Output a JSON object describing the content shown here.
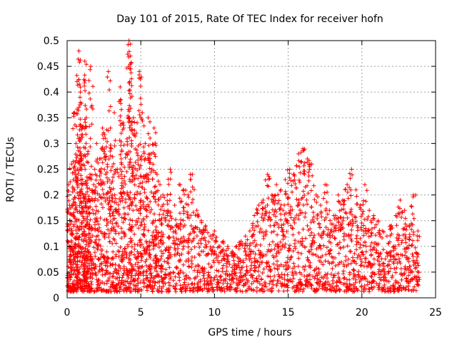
{
  "chart_data": {
    "type": "scatter",
    "title": "Day 101 of 2015, Rate Of TEC Index for receiver hofn",
    "xlabel": "GPS time / hours",
    "ylabel": "ROTI / TECUs",
    "xlim": [
      0,
      25
    ],
    "ylim": [
      0,
      0.5
    ],
    "x_ticks": [
      "0",
      "5",
      "10",
      "15",
      "20",
      "25"
    ],
    "y_ticks": [
      "0",
      "0.05",
      "0.1",
      "0.15",
      "0.2",
      "0.25",
      "0.3",
      "0.35",
      "0.4",
      "0.45",
      "0.5"
    ],
    "grid": true,
    "marker": "+",
    "color": "#ff0000",
    "series": [
      {
        "x": [
          0.1,
          0.2,
          0.3,
          0.4,
          0.5,
          0.6,
          0.7,
          0.8,
          0.9,
          1.0,
          1.1,
          1.2,
          1.3,
          1.4,
          1.5,
          1.6,
          1.8,
          2.0,
          2.2,
          2.4,
          2.6,
          2.8,
          3.0,
          3.2,
          3.4,
          3.6,
          3.8,
          4.0,
          4.2,
          4.3,
          4.5,
          4.7,
          4.9,
          5.1,
          5.3,
          5.5,
          5.7,
          5.9,
          6.1,
          6.3,
          6.5,
          6.8,
          7.0,
          7.3,
          7.6,
          7.9,
          8.2,
          8.5,
          8.8,
          9.1,
          9.4,
          9.7,
          10.0,
          10.3,
          10.6,
          10.9,
          11.2,
          11.5,
          11.8,
          12.1,
          12.4,
          12.7,
          13.0,
          13.3,
          13.6,
          13.9,
          14.2,
          14.5,
          14.8,
          15.1,
          15.4,
          15.7,
          16.0,
          16.3,
          16.6,
          16.9,
          17.2,
          17.5,
          17.8,
          18.1,
          18.4,
          18.7,
          19.0,
          19.3,
          19.6,
          19.9,
          20.2,
          20.5,
          20.8,
          21.1,
          21.4,
          21.7,
          22.0,
          22.3,
          22.6,
          22.9,
          23.2,
          23.5,
          23.8
        ],
        "y": [
          0.22,
          0.15,
          0.26,
          0.18,
          0.36,
          0.3,
          0.25,
          0.48,
          0.4,
          0.33,
          0.2,
          0.46,
          0.35,
          0.28,
          0.19,
          0.45,
          0.22,
          0.3,
          0.27,
          0.33,
          0.31,
          0.44,
          0.29,
          0.36,
          0.25,
          0.41,
          0.34,
          0.28,
          0.5,
          0.47,
          0.35,
          0.32,
          0.44,
          0.36,
          0.3,
          0.35,
          0.28,
          0.33,
          0.24,
          0.22,
          0.2,
          0.2,
          0.25,
          0.18,
          0.22,
          0.21,
          0.2,
          0.24,
          0.17,
          0.15,
          0.14,
          0.12,
          0.13,
          0.1,
          0.11,
          0.1,
          0.09,
          0.1,
          0.11,
          0.12,
          0.13,
          0.16,
          0.18,
          0.19,
          0.24,
          0.2,
          0.22,
          0.21,
          0.23,
          0.25,
          0.24,
          0.28,
          0.29,
          0.27,
          0.26,
          0.2,
          0.18,
          0.22,
          0.17,
          0.16,
          0.2,
          0.19,
          0.22,
          0.25,
          0.21,
          0.18,
          0.22,
          0.17,
          0.16,
          0.15,
          0.13,
          0.12,
          0.14,
          0.16,
          0.19,
          0.17,
          0.14,
          0.2,
          0.13
        ]
      }
    ]
  }
}
